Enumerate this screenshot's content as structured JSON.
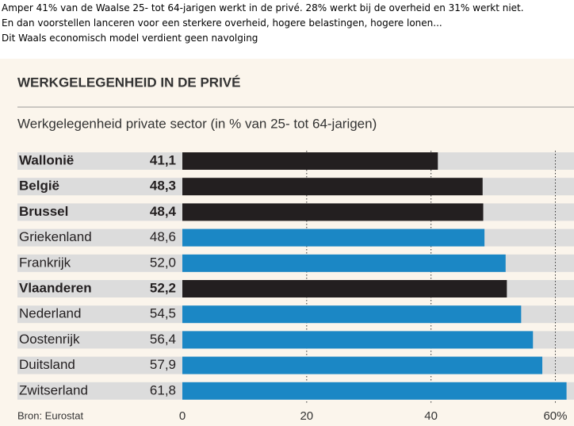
{
  "intro": [
    "Amper 41% van de Waalse 25- tot 64-jarigen werkt in de privé. 28% werkt bij de overheid en 31% werkt niet.",
    "En dan voorstellen lanceren voor een sterkere overheid, hogere belastingen, hogere lonen...",
    "Dit Waals economisch model verdient geen navolging"
  ],
  "chart_data": {
    "type": "bar",
    "orientation": "horizontal",
    "title": "WERKGELEGENHEID IN DE PRIVÉ",
    "subtitle": "Werkgelegenheid private sector (in % van 25- tot 64-jarigen)",
    "source": "Bron: Eurostat",
    "categories": [
      "Wallonië",
      "België",
      "Brussel",
      "Griekenland",
      "Frankrijk",
      "Vlaanderen",
      "Nederland",
      "Oostenrijk",
      "Duitsland",
      "Zwitserland"
    ],
    "values": [
      41.1,
      48.3,
      48.4,
      48.6,
      52.0,
      52.2,
      54.5,
      56.4,
      57.9,
      61.8
    ],
    "value_labels": [
      "41,1",
      "48,3",
      "48,4",
      "48,6",
      "52,0",
      "52,2",
      "54,5",
      "56,4",
      "57,9",
      "61,8"
    ],
    "colors": [
      "#231f20",
      "#231f20",
      "#231f20",
      "#1b87c5",
      "#1b87c5",
      "#231f20",
      "#1b87c5",
      "#1b87c5",
      "#1b87c5",
      "#1b87c5"
    ],
    "highlight_color": "#231f20",
    "xlim": [
      0,
      63
    ],
    "xticks": [
      0,
      20,
      40,
      {
        "value": 60,
        "label": "60%"
      }
    ],
    "grid": true
  }
}
